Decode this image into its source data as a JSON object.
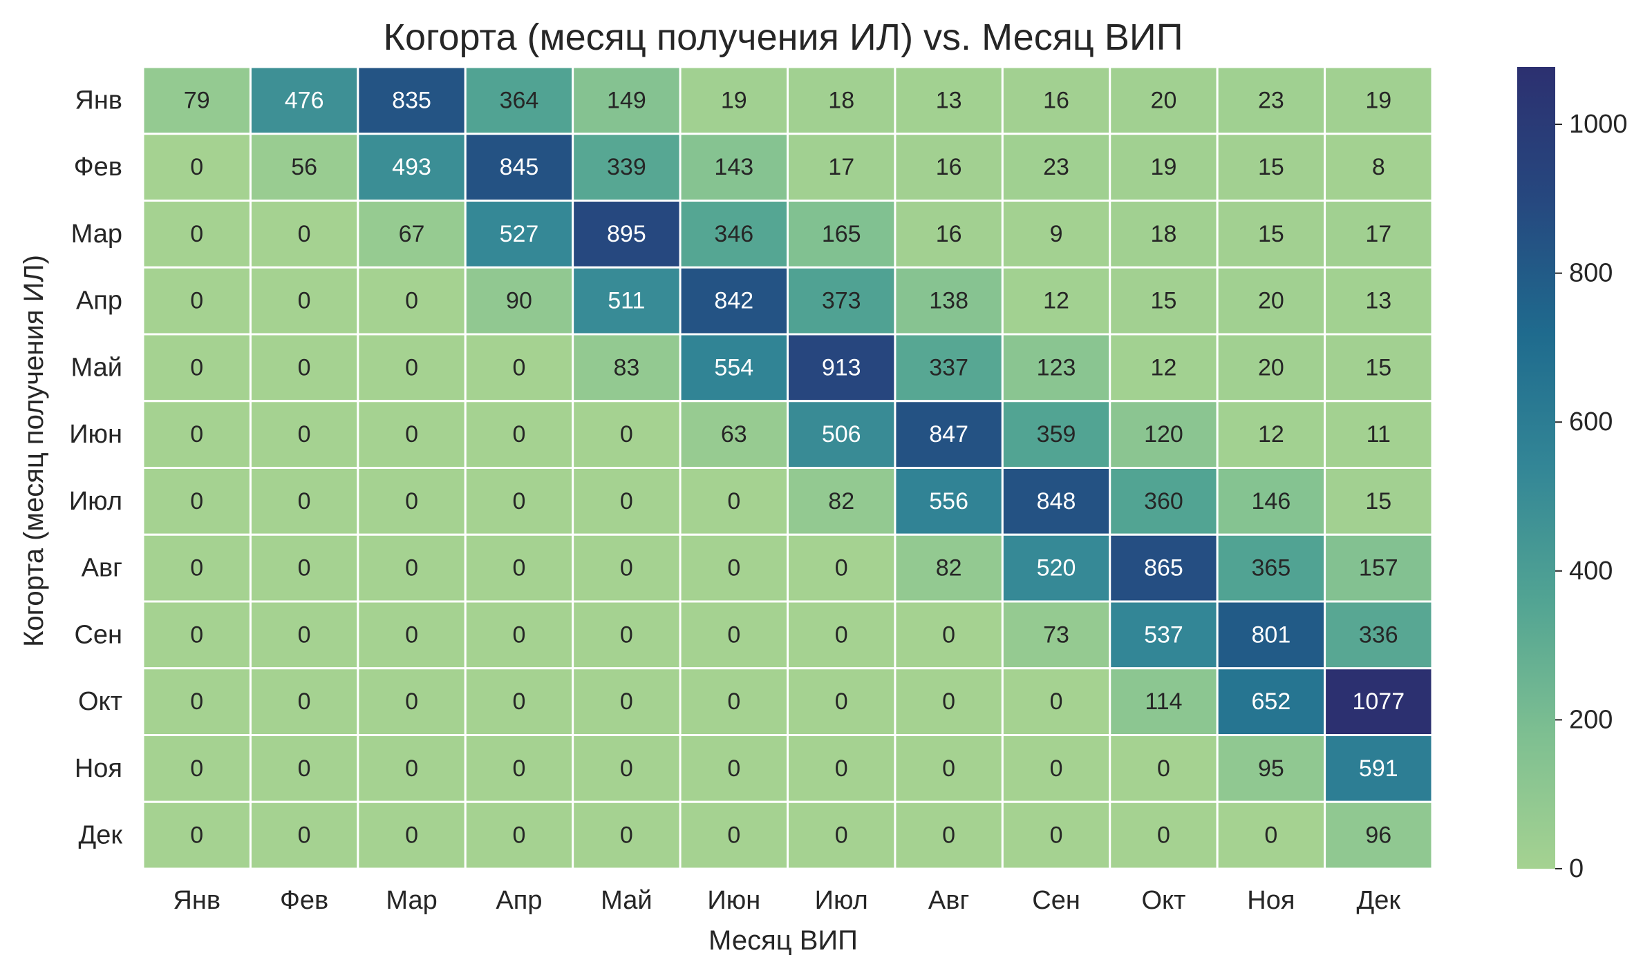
{
  "chart_data": {
    "type": "heatmap",
    "title": "Когорта (месяц получения ИЛ) vs. Месяц ВИП",
    "xlabel": "Месяц ВИП",
    "ylabel": "Когорта (месяц получения ИЛ)",
    "x_categories": [
      "Янв",
      "Фев",
      "Мар",
      "Апр",
      "Май",
      "Июн",
      "Июл",
      "Авг",
      "Сен",
      "Окт",
      "Ноя",
      "Дек"
    ],
    "y_categories": [
      "Янв",
      "Фев",
      "Мар",
      "Апр",
      "Май",
      "Июн",
      "Июл",
      "Авг",
      "Сен",
      "Окт",
      "Ноя",
      "Дек"
    ],
    "values": [
      [
        79,
        476,
        835,
        364,
        149,
        19,
        18,
        13,
        16,
        20,
        23,
        19
      ],
      [
        0,
        56,
        493,
        845,
        339,
        143,
        17,
        16,
        23,
        19,
        15,
        8
      ],
      [
        0,
        0,
        67,
        527,
        895,
        346,
        165,
        16,
        9,
        18,
        15,
        17
      ],
      [
        0,
        0,
        0,
        90,
        511,
        842,
        373,
        138,
        12,
        15,
        20,
        13
      ],
      [
        0,
        0,
        0,
        0,
        83,
        554,
        913,
        337,
        123,
        12,
        20,
        15
      ],
      [
        0,
        0,
        0,
        0,
        0,
        63,
        506,
        847,
        359,
        120,
        12,
        11
      ],
      [
        0,
        0,
        0,
        0,
        0,
        0,
        82,
        556,
        848,
        360,
        146,
        15
      ],
      [
        0,
        0,
        0,
        0,
        0,
        0,
        0,
        82,
        520,
        865,
        365,
        157
      ],
      [
        0,
        0,
        0,
        0,
        0,
        0,
        0,
        0,
        73,
        537,
        801,
        336
      ],
      [
        0,
        0,
        0,
        0,
        0,
        0,
        0,
        0,
        0,
        114,
        652,
        1077
      ],
      [
        0,
        0,
        0,
        0,
        0,
        0,
        0,
        0,
        0,
        0,
        95,
        591
      ],
      [
        0,
        0,
        0,
        0,
        0,
        0,
        0,
        0,
        0,
        0,
        0,
        96
      ]
    ],
    "colorbar": {
      "min": 0,
      "max": 1077,
      "ticks": [
        0,
        200,
        400,
        600,
        800,
        1000
      ],
      "colormap": "crest",
      "color_stops": [
        "#a5d291",
        "#7ebf91",
        "#52a493",
        "#338696",
        "#1f6b8e",
        "#26487f",
        "#2c3070"
      ]
    },
    "annotations": true,
    "grid_lines": "white cell borders"
  }
}
